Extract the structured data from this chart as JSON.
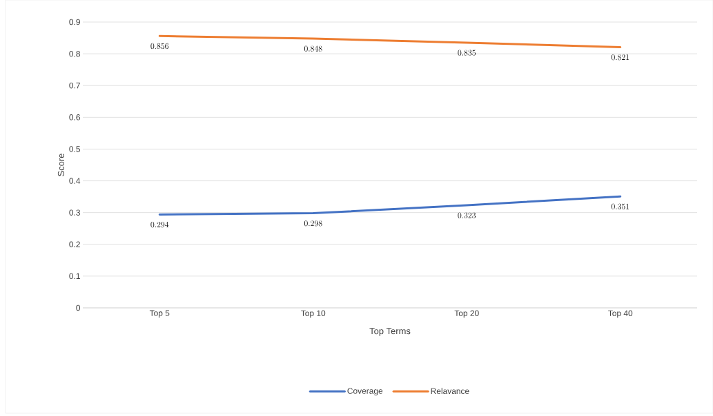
{
  "chart_data": {
    "type": "line",
    "xlabel": "Top Terms",
    "ylabel": "Score",
    "categories": [
      "Top 5",
      "Top 10",
      "Top 20",
      "Top 40"
    ],
    "series": [
      {
        "name": "Coverage",
        "color": "#4472c4",
        "values": [
          0.294,
          0.298,
          0.323,
          0.351
        ]
      },
      {
        "name": "Relavance",
        "color": "#ed7d31",
        "values": [
          0.856,
          0.848,
          0.835,
          0.821
        ]
      }
    ],
    "ylim": [
      0,
      0.9
    ],
    "yticks": [
      0,
      0.1,
      0.2,
      0.3,
      0.4,
      0.5,
      0.6,
      0.7,
      0.8,
      0.9
    ],
    "grid": "y",
    "legend": "bottom",
    "data_labels": true,
    "marker": "none",
    "line_style": "solid"
  }
}
